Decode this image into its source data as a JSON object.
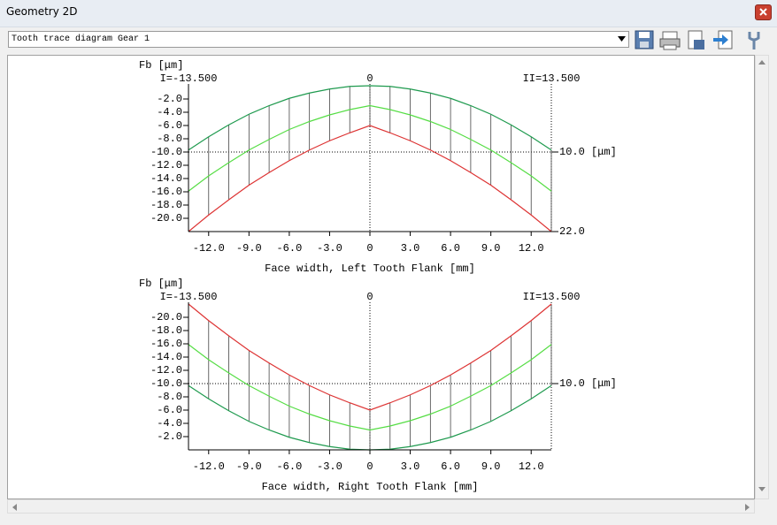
{
  "window": {
    "title": "Geometry 2D",
    "dropdown": "Tooth trace diagram Gear 1"
  },
  "chart_data": [
    {
      "type": "line",
      "y_label": "Fb [μm]",
      "x_label": "Face width, Left Tooth Flank [mm]",
      "x": [
        -13.5,
        -12,
        -10.5,
        -9,
        -7.5,
        -6,
        -4.5,
        -3,
        -1.5,
        0,
        1.5,
        3,
        4.5,
        6,
        7.5,
        9,
        10.5,
        12,
        13.5
      ],
      "xlim": [
        -13.5,
        13.5
      ],
      "xticks": [
        {
          "value": -12,
          "label": "-12.0"
        },
        {
          "value": -9,
          "label": "-9.0"
        },
        {
          "value": -6,
          "label": "-6.0"
        },
        {
          "value": -3,
          "label": "-3.0"
        },
        0,
        {
          "value": 3,
          "label": "3.0"
        },
        {
          "value": 6,
          "label": "6.0"
        },
        {
          "value": 9,
          "label": "9.0"
        },
        {
          "value": 12,
          "label": "12.0"
        }
      ],
      "ylim": [
        -22,
        0
      ],
      "yticks": [
        {
          "value": -2,
          "label": "-2.0"
        },
        {
          "value": -4,
          "label": "-4.0"
        },
        {
          "value": -6,
          "label": "-6.0"
        },
        {
          "value": -8,
          "label": "-8.0"
        },
        {
          "value": -10,
          "label": "-10.0"
        },
        {
          "value": -12,
          "label": "-12.0"
        },
        {
          "value": -14,
          "label": "-14.0"
        },
        {
          "value": -16,
          "label": "-16.0"
        },
        {
          "value": -18,
          "label": "-18.0"
        },
        {
          "value": -20,
          "label": "-20.0"
        }
      ],
      "top_labels": [
        {
          "value": -13.5,
          "label": "I=-13.500"
        },
        0,
        {
          "value": 13.5,
          "label": "II=13.500"
        }
      ],
      "right_labels": [
        {
          "value": -10,
          "label": "10.0 [μm]"
        },
        {
          "value": -22,
          "label": "22.0"
        }
      ],
      "hatching": true,
      "series": [
        {
          "color": "#1e9a4e",
          "values": [
            -9.7,
            -7.7,
            -5.9,
            -4.3,
            -3.0,
            -1.9,
            -1.1,
            -0.5,
            -0.1,
            0,
            -0.1,
            -0.5,
            -1.1,
            -1.9,
            -3.0,
            -4.3,
            -5.9,
            -7.7,
            -9.7
          ]
        },
        {
          "color": "#55dd44",
          "values": [
            -15.9,
            -13.6,
            -11.6,
            -9.7,
            -8.1,
            -6.6,
            -5.4,
            -4.4,
            -3.6,
            -3.0,
            -3.6,
            -4.4,
            -5.4,
            -6.6,
            -8.1,
            -9.7,
            -11.6,
            -13.6,
            -15.9
          ]
        },
        {
          "color": "#dd3333",
          "values": [
            -22.0,
            -19.5,
            -17.2,
            -15.0,
            -13.1,
            -11.3,
            -9.7,
            -8.3,
            -7.1,
            -6.0,
            -7.1,
            -8.3,
            -9.7,
            -11.3,
            -13.1,
            -15.0,
            -17.2,
            -19.5,
            -22.0
          ]
        }
      ]
    },
    {
      "type": "line",
      "y_label": "Fb [μm]",
      "x_label": "Face width, Right Tooth Flank [mm]",
      "x": [
        -13.5,
        -12,
        -10.5,
        -9,
        -7.5,
        -6,
        -4.5,
        -3,
        -1.5,
        0,
        1.5,
        3,
        4.5,
        6,
        7.5,
        9,
        10.5,
        12,
        13.5
      ],
      "xlim": [
        -13.5,
        13.5
      ],
      "xticks": [
        {
          "value": -12,
          "label": "-12.0"
        },
        {
          "value": -9,
          "label": "-9.0"
        },
        {
          "value": -6,
          "label": "-6.0"
        },
        {
          "value": -3,
          "label": "-3.0"
        },
        0,
        {
          "value": 3,
          "label": "3.0"
        },
        {
          "value": 6,
          "label": "6.0"
        },
        {
          "value": 9,
          "label": "9.0"
        },
        {
          "value": 12,
          "label": "12.0"
        }
      ],
      "ylim": [
        0,
        -22
      ],
      "yticks": [
        {
          "value": -2,
          "label": "-2.0"
        },
        {
          "value": -4,
          "label": "-4.0"
        },
        {
          "value": -6,
          "label": "-6.0"
        },
        {
          "value": -8,
          "label": "-8.0"
        },
        {
          "value": -10,
          "label": "-10.0"
        },
        {
          "value": -12,
          "label": "-12.0"
        },
        {
          "value": -14,
          "label": "-14.0"
        },
        {
          "value": -16,
          "label": "-16.0"
        },
        {
          "value": -18,
          "label": "-18.0"
        },
        {
          "value": -20,
          "label": "-20.0"
        }
      ],
      "top_labels": [
        {
          "value": -13.5,
          "label": "I=-13.500"
        },
        0,
        {
          "value": 13.5,
          "label": "II=13.500"
        }
      ],
      "right_labels": [
        {
          "value": -10,
          "label": "10.0 [μm]"
        }
      ],
      "hatching": true,
      "series": [
        {
          "color": "#1e9a4e",
          "values": [
            -9.7,
            -7.7,
            -5.9,
            -4.3,
            -3.0,
            -1.9,
            -1.1,
            -0.5,
            -0.1,
            0,
            -0.1,
            -0.5,
            -1.1,
            -1.9,
            -3.0,
            -4.3,
            -5.9,
            -7.7,
            -9.7
          ]
        },
        {
          "color": "#55dd44",
          "values": [
            -15.9,
            -13.6,
            -11.6,
            -9.7,
            -8.1,
            -6.6,
            -5.4,
            -4.4,
            -3.6,
            -3.0,
            -3.6,
            -4.4,
            -5.4,
            -6.6,
            -8.1,
            -9.7,
            -11.6,
            -13.6,
            -15.9
          ]
        },
        {
          "color": "#dd3333",
          "values": [
            -22.0,
            -19.5,
            -17.2,
            -15.0,
            -13.1,
            -11.3,
            -9.7,
            -8.3,
            -7.1,
            -6.0,
            -7.1,
            -8.3,
            -9.7,
            -11.3,
            -13.1,
            -15.0,
            -17.2,
            -19.5,
            -22.0
          ]
        }
      ]
    }
  ]
}
